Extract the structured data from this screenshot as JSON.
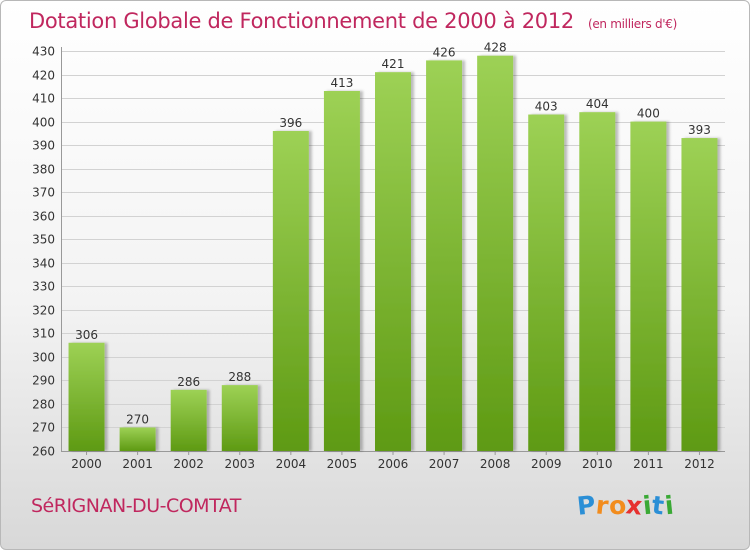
{
  "title": "Dotation Globale de Fonctionnement de 2000 à 2012",
  "unit_note": "(en milliers d'€)",
  "commune": "SéRIGNAN-DU-COMTAT",
  "logo": {
    "letters": [
      "P",
      "r",
      "o",
      "x",
      "i",
      "t",
      "i"
    ],
    "colors": [
      "#2b8fd6",
      "#f28c1d",
      "#f28c1d",
      "#e6312f",
      "#3aa935",
      "#2b8fd6",
      "#3aa935"
    ]
  },
  "colors": {
    "bar_top": "#9dd155",
    "bar_bottom": "#5e9a13",
    "title": "#c0275e",
    "grid": "#d2d2d2"
  },
  "chart_data": {
    "type": "bar",
    "categories": [
      "2000",
      "2001",
      "2002",
      "2003",
      "2004",
      "2005",
      "2006",
      "2007",
      "2008",
      "2009",
      "2010",
      "2011",
      "2012"
    ],
    "values": [
      306,
      270,
      286,
      288,
      396,
      413,
      421,
      426,
      428,
      403,
      404,
      400,
      393
    ],
    "ylim": [
      260,
      430
    ],
    "yticks": [
      260,
      270,
      280,
      290,
      300,
      310,
      320,
      330,
      340,
      350,
      360,
      370,
      380,
      390,
      400,
      410,
      420,
      430
    ],
    "grid": true,
    "data_labels": true
  }
}
